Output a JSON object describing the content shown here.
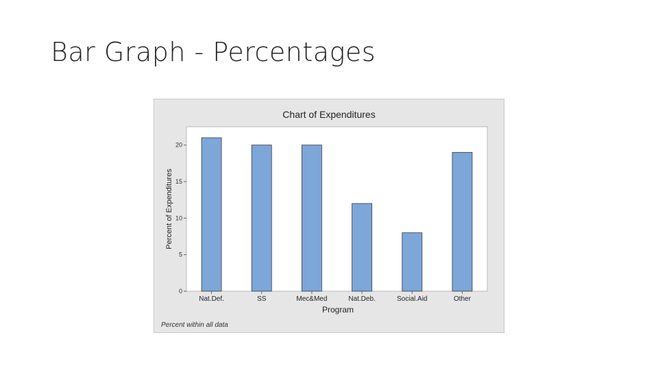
{
  "slide": {
    "title": "Bar Graph - Percentages"
  },
  "colors": {
    "bar_fill": "#7da6d9",
    "bar_stroke": "#3a3a3a",
    "frame_bg": "#e6e6e6",
    "plot_bg": "#ffffff"
  },
  "chart_data": {
    "type": "bar",
    "title": "Chart of Expenditures",
    "xlabel": "Program",
    "ylabel": "Percent of Expenditures",
    "footnote": "Percent within all data",
    "categories": [
      "Nat.Def.",
      "SS",
      "Mec&Med",
      "Nat.Deb.",
      "Social.Aid",
      "Other"
    ],
    "values": [
      21,
      20,
      20,
      12,
      8,
      19
    ],
    "ylim": [
      0,
      22.5
    ],
    "yticks": [
      0,
      5,
      10,
      15,
      20
    ],
    "grid": false,
    "legend": "none"
  }
}
